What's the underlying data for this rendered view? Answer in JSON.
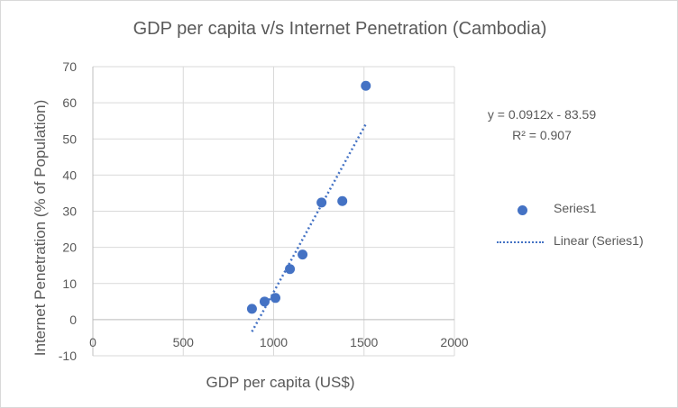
{
  "chart_data": {
    "type": "scatter",
    "title": "GDP per capita v/s Internet Penetration (Cambodia)",
    "xlabel": "GDP per capita (US$)",
    "ylabel": "Internet Penetration (% of Population)",
    "xlim": [
      0,
      2000
    ],
    "ylim": [
      -10,
      70
    ],
    "x_ticks": [
      0,
      500,
      1000,
      1500,
      2000
    ],
    "y_ticks": [
      -10,
      0,
      10,
      20,
      30,
      40,
      50,
      60,
      70
    ],
    "x_tick_labels": [
      "0",
      "500",
      "1000",
      "1500",
      "2000"
    ],
    "y_tick_labels": [
      "-10",
      "0",
      "10",
      "20",
      "30",
      "40",
      "50",
      "60",
      "70"
    ],
    "grid": true,
    "legend_position": "right",
    "series": [
      {
        "name": "Series1",
        "color": "#4472c4",
        "points": [
          {
            "x": 880,
            "y": 3
          },
          {
            "x": 950,
            "y": 5
          },
          {
            "x": 1010,
            "y": 6
          },
          {
            "x": 1090,
            "y": 14
          },
          {
            "x": 1160,
            "y": 18
          },
          {
            "x": 1265,
            "y": 32.4
          },
          {
            "x": 1380,
            "y": 32.8
          },
          {
            "x": 1510,
            "y": 64.7
          }
        ]
      }
    ],
    "trendline": {
      "name": "Linear (Series1)",
      "type": "linear",
      "slope": 0.0912,
      "intercept": -83.59,
      "x_range": [
        880,
        1510
      ],
      "color": "#4472c4",
      "equation_label": "y = 0.0912x - 83.59",
      "r2_label": "R² = 0.907"
    }
  }
}
